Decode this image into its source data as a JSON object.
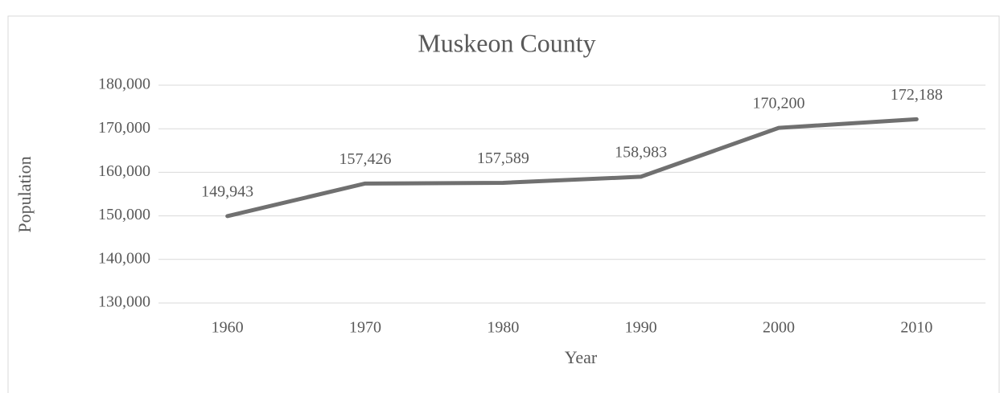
{
  "chart_data": {
    "type": "line",
    "title": "Muskeon County",
    "x_label": "Year",
    "y_label": "Population",
    "categories": [
      "1960",
      "1970",
      "1980",
      "1990",
      "2000",
      "2010"
    ],
    "series": [
      {
        "name": "Population",
        "color": "#707070",
        "values": [
          149943,
          157426,
          157589,
          158983,
          170200,
          172188
        ],
        "value_labels": [
          "149,943",
          "157,426",
          "157,589",
          "158,983",
          "170,200",
          "172,188"
        ]
      }
    ],
    "ylim": [
      130000,
      180000
    ],
    "yticks": [
      {
        "value": 130000,
        "label": "130,000"
      },
      {
        "value": 140000,
        "label": "140,000"
      },
      {
        "value": 150000,
        "label": "150,000"
      },
      {
        "value": 160000,
        "label": "160,000"
      },
      {
        "value": 170000,
        "label": "170,000"
      },
      {
        "value": 180000,
        "label": "180,000"
      }
    ],
    "grid": true
  }
}
